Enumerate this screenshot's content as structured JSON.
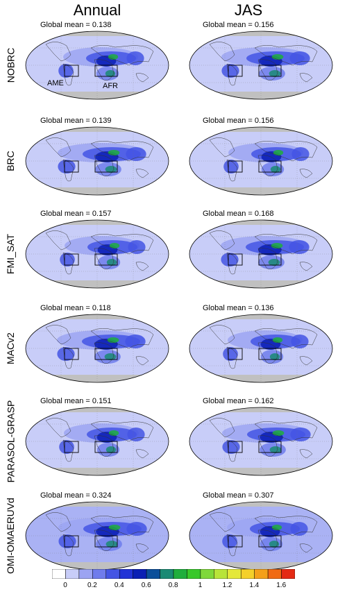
{
  "columns": [
    "Annual",
    "JAS"
  ],
  "regions": {
    "ame": "AME",
    "afr": "AFR"
  },
  "rows": [
    {
      "label": "NOBRC",
      "annual": "Global mean = 0.138",
      "jas": "Global mean = 0.156"
    },
    {
      "label": "BRC",
      "annual": "Global mean = 0.139",
      "jas": "Global mean = 0.156"
    },
    {
      "label": "FMI_SAT",
      "annual": "Global mean = 0.157",
      "jas": "Global mean = 0.168"
    },
    {
      "label": "MACv2",
      "annual": "Global mean = 0.118",
      "jas": "Global mean = 0.136"
    },
    {
      "label": "PARASOL-GRASP",
      "annual": "Global mean = 0.151",
      "jas": "Global mean = 0.162"
    },
    {
      "label": "OMI-OMAERUVd",
      "annual": "Global mean = 0.324",
      "jas": "Global mean = 0.307"
    }
  ],
  "colorbar": {
    "ticks": [
      "0",
      "0.2",
      "0.4",
      "0.6",
      "0.8",
      "1",
      "1.2",
      "1.4",
      "1.6"
    ],
    "colors": [
      "#ffffff",
      "#c8cdf8",
      "#9ca4f2",
      "#6f7cec",
      "#4455e4",
      "#2233d6",
      "#0a1fb4",
      "#0b4f9a",
      "#1a8a74",
      "#1fae3c",
      "#38c82a",
      "#7fd83a",
      "#b8e43a",
      "#e4e83a",
      "#f4d02a",
      "#f4a01a",
      "#f06a14",
      "#e42a14"
    ]
  }
}
